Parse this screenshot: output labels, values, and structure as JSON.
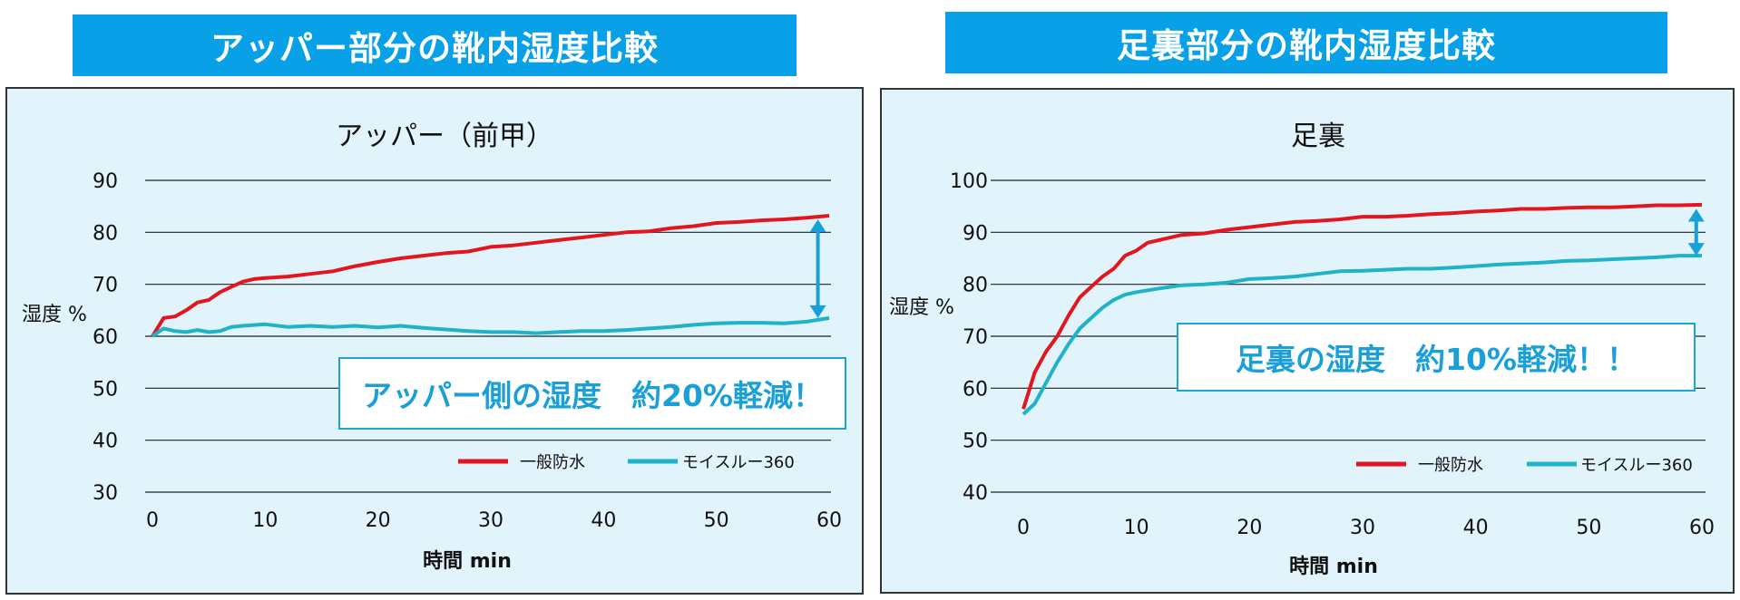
{
  "banners": {
    "left": "アッパー部分の靴内湿度比較",
    "right": "足裏部分の靴内湿度比較"
  },
  "colors": {
    "banner": "#08a0e6",
    "panel_bg": "#e1f3fb",
    "series_general": "#e3161e",
    "series_moisture": "#1fb3c8",
    "arrow": "#1a9fd8",
    "callout_text": "#1a9fd8"
  },
  "chart_data": [
    {
      "type": "line",
      "title": "アッパー（前甲）",
      "ylabel": "湿度 %",
      "xlabel": "時間 min",
      "ylim": [
        30,
        90
      ],
      "yticks": [
        30,
        40,
        50,
        60,
        70,
        80,
        90
      ],
      "xlim": [
        0,
        60
      ],
      "xticks": [
        0,
        10,
        20,
        30,
        40,
        50,
        60
      ],
      "grid": "horizontal",
      "legend": "bottom-right",
      "annotation": "アッパー側の湿度　約20%軽減！",
      "arrow": {
        "x": 59,
        "from": 82.5,
        "to": 63.5
      },
      "series": [
        {
          "name": "一般防水",
          "x": [
            0,
            1,
            2,
            3,
            4,
            5,
            6,
            7,
            8,
            9,
            10,
            12,
            14,
            16,
            18,
            20,
            22,
            24,
            26,
            28,
            30,
            32,
            34,
            36,
            38,
            40,
            42,
            44,
            46,
            48,
            50,
            52,
            54,
            56,
            58,
            60
          ],
          "values": [
            60,
            63.5,
            63.8,
            65,
            66.5,
            67,
            68.5,
            69.5,
            70.5,
            71,
            71.2,
            71.5,
            72,
            72.5,
            73.5,
            74.3,
            75,
            75.5,
            76,
            76.3,
            77.2,
            77.5,
            78,
            78.5,
            79,
            79.5,
            80,
            80.2,
            80.8,
            81.2,
            81.8,
            82,
            82.3,
            82.5,
            82.8,
            83.2
          ]
        },
        {
          "name": "モイスルー360",
          "x": [
            0,
            1,
            2,
            3,
            4,
            5,
            6,
            7,
            8,
            10,
            12,
            14,
            16,
            18,
            20,
            22,
            24,
            26,
            28,
            30,
            32,
            34,
            36,
            38,
            40,
            42,
            44,
            46,
            48,
            50,
            52,
            54,
            56,
            58,
            60
          ],
          "values": [
            60,
            61.5,
            61,
            60.8,
            61.2,
            60.8,
            61,
            61.8,
            62,
            62.3,
            61.8,
            62,
            61.8,
            62,
            61.7,
            62,
            61.6,
            61.3,
            61,
            60.8,
            60.8,
            60.6,
            60.8,
            61,
            61,
            61.2,
            61.5,
            61.8,
            62.2,
            62.5,
            62.6,
            62.6,
            62.5,
            62.8,
            63.5
          ]
        }
      ]
    },
    {
      "type": "line",
      "title": "足裏",
      "ylabel": "湿度 %",
      "xlabel": "時間 min",
      "ylim": [
        40,
        100
      ],
      "yticks": [
        40,
        50,
        60,
        70,
        80,
        90,
        100
      ],
      "xlim": [
        0,
        60
      ],
      "xticks": [
        0,
        10,
        20,
        30,
        40,
        50,
        60
      ],
      "grid": "horizontal",
      "legend": "bottom-right",
      "annotation": "足裏の湿度　約10%軽減！！",
      "arrow": {
        "x": 59.5,
        "from": 94.5,
        "to": 85.5
      },
      "series": [
        {
          "name": "一般防水",
          "x": [
            0,
            1,
            2,
            3,
            4,
            5,
            6,
            7,
            8,
            9,
            10,
            11,
            12,
            14,
            16,
            18,
            20,
            22,
            24,
            26,
            28,
            30,
            32,
            34,
            36,
            38,
            40,
            42,
            44,
            46,
            48,
            50,
            52,
            54,
            56,
            58,
            60
          ],
          "values": [
            56,
            63,
            67,
            70,
            74,
            77.5,
            79.5,
            81.5,
            83,
            85.5,
            86.5,
            88,
            88.5,
            89.5,
            89.8,
            90.5,
            91,
            91.5,
            92,
            92.2,
            92.5,
            93,
            93,
            93.2,
            93.5,
            93.7,
            94,
            94.2,
            94.5,
            94.5,
            94.7,
            94.8,
            94.8,
            95,
            95.2,
            95.2,
            95.3
          ]
        },
        {
          "name": "モイスルー360",
          "x": [
            0,
            1,
            2,
            3,
            4,
            5,
            6,
            7,
            8,
            9,
            10,
            12,
            14,
            16,
            18,
            20,
            22,
            24,
            26,
            28,
            30,
            32,
            34,
            36,
            38,
            40,
            42,
            44,
            46,
            48,
            50,
            52,
            54,
            56,
            58,
            60
          ],
          "values": [
            55,
            57,
            61,
            65,
            68.5,
            71.5,
            73.5,
            75.5,
            77,
            78,
            78.5,
            79.2,
            79.8,
            80,
            80.3,
            81,
            81.2,
            81.5,
            82,
            82.5,
            82.6,
            82.8,
            83,
            83,
            83.2,
            83.5,
            83.8,
            84,
            84.2,
            84.5,
            84.6,
            84.8,
            85,
            85.2,
            85.5,
            85.5
          ]
        }
      ]
    }
  ]
}
